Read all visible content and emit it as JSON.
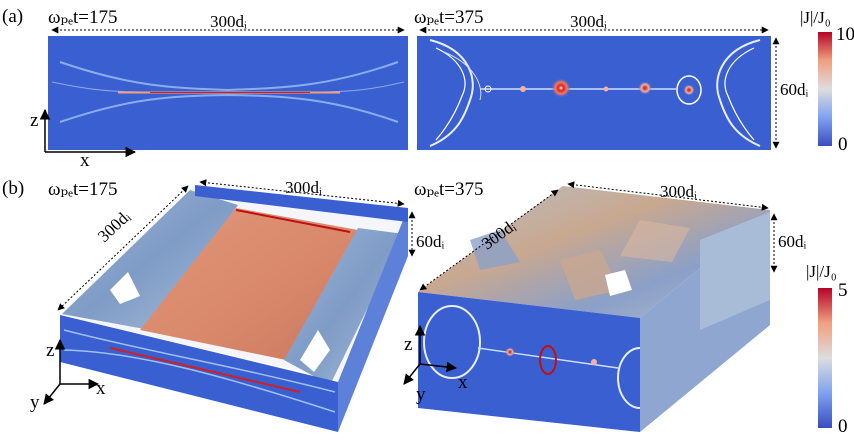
{
  "panel_a": {
    "label": "(a)",
    "left_time": "ωₚₑt=175",
    "right_time": "ωₚₑt=375",
    "left_width": "300dᵢ",
    "right_width": "300dᵢ",
    "height": "60dᵢ",
    "axis_z": "z",
    "axis_x": "x"
  },
  "panel_b": {
    "label": "(b)",
    "left_time": "ωₚₑt=175",
    "right_time": "ωₚₑt=375",
    "left_depth": "300dᵢ",
    "left_width": "300dᵢ",
    "left_height": "60dᵢ",
    "right_depth": "300dᵢ",
    "right_width": "300dᵢ",
    "right_height": "60dᵢ",
    "axis_z": "z",
    "axis_x": "x",
    "axis_y": "y"
  },
  "colorbar_a": {
    "title": "|J|/J₀",
    "max": "10",
    "min": "0"
  },
  "colorbar_b": {
    "title": "|J|/J₀",
    "max": "5",
    "min": "0"
  },
  "colors": {
    "background_field": "#3a5fd0",
    "sheet": "#d8876a",
    "peak": "#c01010",
    "surface": "#8aa6cc"
  }
}
